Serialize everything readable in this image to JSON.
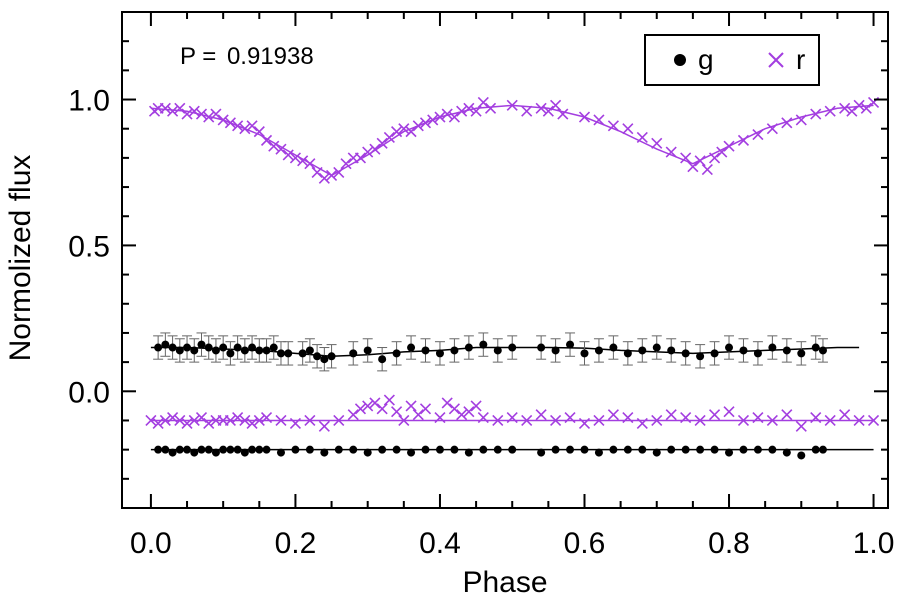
{
  "chart_data": {
    "type": "scatter",
    "title": "",
    "xlabel": "Phase",
    "ylabel": "Normolized flux",
    "xlim": [
      -0.04,
      1.02
    ],
    "ylim": [
      -0.4,
      1.3
    ],
    "xticks": [
      0.0,
      0.2,
      0.4,
      0.6,
      0.8,
      1.0
    ],
    "xtick_labels": [
      "0.0",
      "0.2",
      "0.4",
      "0.6",
      "0.8",
      "1.0"
    ],
    "yticks": [
      0.0,
      0.5,
      1.0
    ],
    "ytick_labels": [
      "0.0",
      "0.5",
      "1.0"
    ],
    "annotation": {
      "label": "P = ",
      "value": "0.91938"
    },
    "legend": {
      "position": "top-right",
      "entries": [
        {
          "name": "g",
          "marker": "filled-circle",
          "color": "#000000"
        },
        {
          "name": "r",
          "marker": "cross",
          "color": "#a33ee0"
        }
      ]
    },
    "colors": {
      "g": "#000000",
      "r": "#a33ee0",
      "g_error_bars": "#666666"
    },
    "series": [
      {
        "name": "r light curve",
        "marker": "cross",
        "color": "#a33ee0",
        "curve": {
          "x": [
            0.0,
            0.05,
            0.1,
            0.15,
            0.2,
            0.25,
            0.3,
            0.35,
            0.4,
            0.45,
            0.5,
            0.55,
            0.6,
            0.65,
            0.7,
            0.75,
            0.8,
            0.85,
            0.9,
            0.95,
            1.0
          ],
          "y": [
            0.97,
            0.96,
            0.93,
            0.88,
            0.81,
            0.74,
            0.81,
            0.89,
            0.94,
            0.97,
            0.98,
            0.97,
            0.94,
            0.89,
            0.83,
            0.78,
            0.84,
            0.9,
            0.94,
            0.97,
            0.98
          ]
        },
        "points": {
          "x": [
            0.005,
            0.01,
            0.02,
            0.03,
            0.04,
            0.05,
            0.06,
            0.07,
            0.08,
            0.09,
            0.1,
            0.11,
            0.12,
            0.13,
            0.14,
            0.15,
            0.16,
            0.17,
            0.18,
            0.19,
            0.2,
            0.21,
            0.22,
            0.23,
            0.24,
            0.25,
            0.26,
            0.27,
            0.28,
            0.29,
            0.3,
            0.31,
            0.32,
            0.33,
            0.34,
            0.35,
            0.36,
            0.37,
            0.38,
            0.39,
            0.4,
            0.41,
            0.42,
            0.43,
            0.44,
            0.45,
            0.46,
            0.47,
            0.5,
            0.52,
            0.54,
            0.55,
            0.56,
            0.57,
            0.6,
            0.62,
            0.64,
            0.66,
            0.68,
            0.7,
            0.72,
            0.74,
            0.75,
            0.76,
            0.77,
            0.78,
            0.79,
            0.8,
            0.82,
            0.84,
            0.86,
            0.88,
            0.9,
            0.92,
            0.94,
            0.96,
            0.97,
            0.98,
            0.99,
            1.0
          ],
          "y": [
            0.96,
            0.97,
            0.97,
            0.96,
            0.97,
            0.95,
            0.96,
            0.95,
            0.94,
            0.95,
            0.93,
            0.92,
            0.91,
            0.9,
            0.91,
            0.89,
            0.86,
            0.84,
            0.83,
            0.81,
            0.8,
            0.79,
            0.78,
            0.75,
            0.73,
            0.74,
            0.75,
            0.78,
            0.8,
            0.8,
            0.82,
            0.83,
            0.85,
            0.87,
            0.89,
            0.9,
            0.89,
            0.91,
            0.92,
            0.93,
            0.94,
            0.95,
            0.94,
            0.96,
            0.97,
            0.96,
            0.99,
            0.97,
            0.98,
            0.96,
            0.97,
            0.96,
            0.98,
            0.95,
            0.94,
            0.93,
            0.91,
            0.9,
            0.87,
            0.85,
            0.82,
            0.8,
            0.77,
            0.79,
            0.76,
            0.8,
            0.82,
            0.84,
            0.86,
            0.88,
            0.9,
            0.92,
            0.93,
            0.95,
            0.96,
            0.97,
            0.96,
            0.98,
            0.97,
            0.99
          ]
        }
      },
      {
        "name": "g light curve",
        "marker": "filled-circle",
        "color": "#000000",
        "error_bar": 0.04,
        "curve": {
          "x": [
            0.0,
            0.05,
            0.1,
            0.15,
            0.2,
            0.25,
            0.3,
            0.35,
            0.4,
            0.45,
            0.5,
            0.55,
            0.6,
            0.65,
            0.7,
            0.75,
            0.8,
            0.85,
            0.9,
            0.95,
            0.98
          ],
          "y": [
            0.15,
            0.15,
            0.145,
            0.14,
            0.13,
            0.12,
            0.125,
            0.135,
            0.14,
            0.15,
            0.15,
            0.15,
            0.148,
            0.14,
            0.135,
            0.13,
            0.135,
            0.14,
            0.145,
            0.15,
            0.15
          ]
        },
        "points": {
          "x": [
            0.01,
            0.02,
            0.03,
            0.04,
            0.05,
            0.06,
            0.07,
            0.08,
            0.09,
            0.1,
            0.11,
            0.12,
            0.13,
            0.14,
            0.15,
            0.16,
            0.17,
            0.18,
            0.19,
            0.21,
            0.22,
            0.23,
            0.24,
            0.25,
            0.28,
            0.3,
            0.32,
            0.34,
            0.36,
            0.38,
            0.4,
            0.42,
            0.44,
            0.46,
            0.48,
            0.5,
            0.54,
            0.56,
            0.58,
            0.6,
            0.62,
            0.64,
            0.66,
            0.68,
            0.7,
            0.72,
            0.74,
            0.76,
            0.78,
            0.8,
            0.82,
            0.84,
            0.86,
            0.88,
            0.9,
            0.92,
            0.93
          ],
          "y": [
            0.15,
            0.16,
            0.15,
            0.14,
            0.15,
            0.14,
            0.16,
            0.15,
            0.14,
            0.15,
            0.13,
            0.15,
            0.14,
            0.15,
            0.14,
            0.14,
            0.15,
            0.13,
            0.13,
            0.13,
            0.14,
            0.12,
            0.11,
            0.12,
            0.13,
            0.14,
            0.11,
            0.13,
            0.15,
            0.14,
            0.13,
            0.14,
            0.15,
            0.16,
            0.14,
            0.15,
            0.15,
            0.14,
            0.16,
            0.13,
            0.14,
            0.15,
            0.13,
            0.14,
            0.15,
            0.14,
            0.13,
            0.12,
            0.13,
            0.15,
            0.14,
            0.13,
            0.15,
            0.14,
            0.13,
            0.15,
            0.14
          ]
        }
      },
      {
        "name": "r residuals",
        "marker": "cross",
        "color": "#a33ee0",
        "baseline": -0.1,
        "points": {
          "x": [
            0.0,
            0.01,
            0.02,
            0.03,
            0.04,
            0.05,
            0.06,
            0.07,
            0.08,
            0.09,
            0.1,
            0.11,
            0.12,
            0.13,
            0.14,
            0.15,
            0.16,
            0.18,
            0.2,
            0.22,
            0.24,
            0.26,
            0.28,
            0.29,
            0.3,
            0.31,
            0.32,
            0.33,
            0.34,
            0.35,
            0.36,
            0.37,
            0.38,
            0.4,
            0.41,
            0.42,
            0.43,
            0.44,
            0.45,
            0.46,
            0.48,
            0.5,
            0.52,
            0.54,
            0.56,
            0.58,
            0.6,
            0.62,
            0.64,
            0.66,
            0.68,
            0.7,
            0.72,
            0.74,
            0.76,
            0.78,
            0.8,
            0.82,
            0.84,
            0.86,
            0.88,
            0.9,
            0.92,
            0.94,
            0.96,
            0.98,
            1.0
          ],
          "y": [
            -0.1,
            -0.11,
            -0.1,
            -0.09,
            -0.1,
            -0.11,
            -0.1,
            -0.09,
            -0.11,
            -0.1,
            -0.1,
            -0.1,
            -0.09,
            -0.1,
            -0.11,
            -0.1,
            -0.09,
            -0.1,
            -0.11,
            -0.1,
            -0.12,
            -0.1,
            -0.08,
            -0.06,
            -0.05,
            -0.04,
            -0.06,
            -0.03,
            -0.07,
            -0.1,
            -0.05,
            -0.08,
            -0.06,
            -0.09,
            -0.04,
            -0.06,
            -0.08,
            -0.07,
            -0.05,
            -0.09,
            -0.1,
            -0.09,
            -0.1,
            -0.08,
            -0.1,
            -0.09,
            -0.11,
            -0.1,
            -0.08,
            -0.09,
            -0.11,
            -0.1,
            -0.08,
            -0.09,
            -0.1,
            -0.08,
            -0.07,
            -0.1,
            -0.09,
            -0.1,
            -0.08,
            -0.12,
            -0.09,
            -0.1,
            -0.08,
            -0.1,
            -0.1
          ]
        }
      },
      {
        "name": "g residuals",
        "marker": "filled-circle",
        "color": "#000000",
        "baseline": -0.2,
        "points": {
          "x": [
            0.01,
            0.02,
            0.03,
            0.04,
            0.05,
            0.06,
            0.07,
            0.08,
            0.09,
            0.1,
            0.11,
            0.12,
            0.13,
            0.14,
            0.15,
            0.16,
            0.18,
            0.2,
            0.22,
            0.24,
            0.26,
            0.28,
            0.3,
            0.32,
            0.34,
            0.36,
            0.38,
            0.4,
            0.42,
            0.44,
            0.46,
            0.48,
            0.5,
            0.54,
            0.56,
            0.58,
            0.6,
            0.62,
            0.64,
            0.66,
            0.68,
            0.7,
            0.72,
            0.74,
            0.76,
            0.78,
            0.8,
            0.82,
            0.84,
            0.86,
            0.88,
            0.9,
            0.92,
            0.93
          ],
          "y": [
            -0.2,
            -0.2,
            -0.21,
            -0.2,
            -0.2,
            -0.21,
            -0.2,
            -0.2,
            -0.21,
            -0.2,
            -0.2,
            -0.2,
            -0.21,
            -0.2,
            -0.2,
            -0.2,
            -0.21,
            -0.2,
            -0.2,
            -0.21,
            -0.2,
            -0.2,
            -0.21,
            -0.2,
            -0.2,
            -0.21,
            -0.2,
            -0.2,
            -0.2,
            -0.21,
            -0.2,
            -0.2,
            -0.2,
            -0.21,
            -0.2,
            -0.2,
            -0.2,
            -0.21,
            -0.2,
            -0.2,
            -0.2,
            -0.21,
            -0.2,
            -0.2,
            -0.2,
            -0.2,
            -0.21,
            -0.2,
            -0.2,
            -0.2,
            -0.21,
            -0.22,
            -0.2,
            -0.2
          ]
        }
      }
    ]
  }
}
